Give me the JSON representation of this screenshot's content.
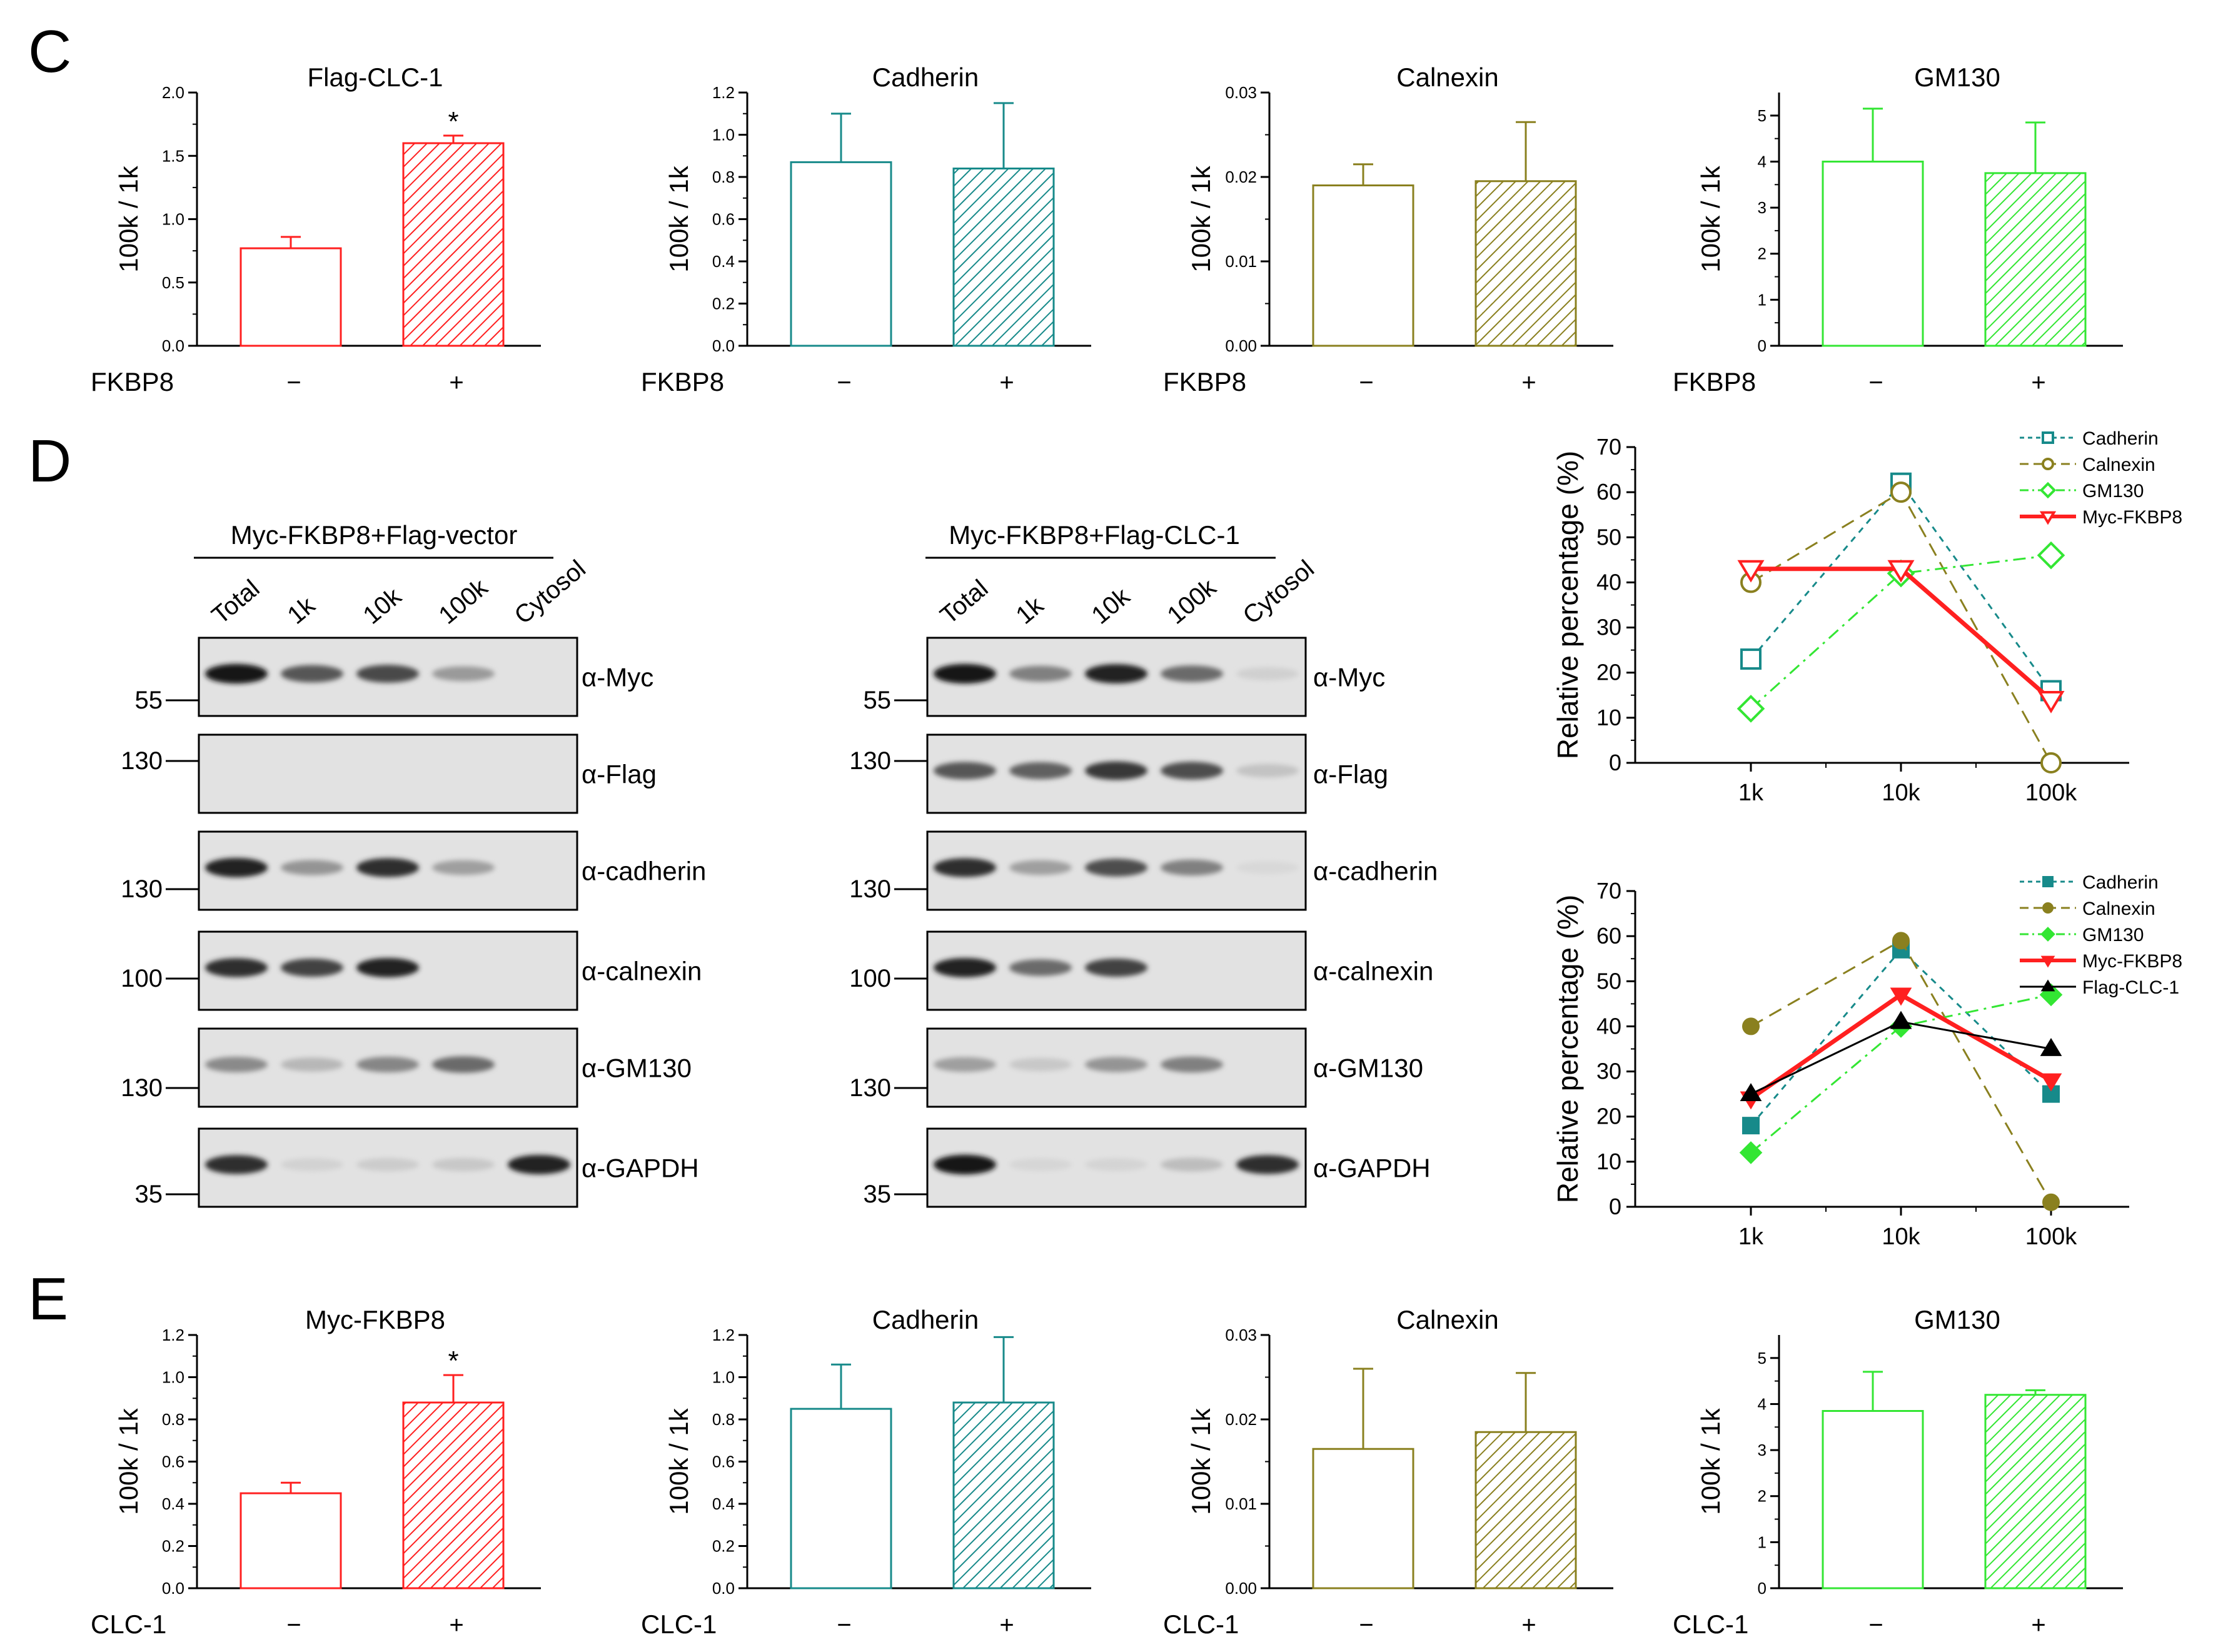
{
  "panels": {
    "C": "C",
    "D": "D",
    "E": "E"
  },
  "colors": {
    "flag_clc1": "#ff2020",
    "myc_fkbp8": "#ff2020",
    "cadherin": "#178a8a",
    "calnexin": "#8a801f",
    "gm130": "#33e633",
    "flag_line": "#000000"
  },
  "signs": {
    "minus": "−",
    "plus": "+"
  },
  "chart_data": [
    {
      "id": "C1",
      "type": "bar",
      "title": "Flag-CLC-1",
      "ylabel": "100k / 1k",
      "xlabel": "FKBP8",
      "categories": [
        "−",
        "+"
      ],
      "values": [
        0.77,
        1.6
      ],
      "errors": [
        0.09,
        0.06
      ],
      "ylim": [
        0,
        2.0
      ],
      "yticks": [
        "0.0",
        "0.5",
        "1.0",
        "1.5",
        "2.0"
      ],
      "significance": [
        "",
        "*"
      ],
      "color_key": "flag_clc1"
    },
    {
      "id": "C2",
      "type": "bar",
      "title": "Cadherin",
      "ylabel": "100k / 1k",
      "xlabel": "FKBP8",
      "categories": [
        "−",
        "+"
      ],
      "values": [
        0.87,
        0.84
      ],
      "errors": [
        0.23,
        0.31
      ],
      "ylim": [
        0,
        1.2
      ],
      "yticks": [
        "0.0",
        "0.2",
        "0.4",
        "0.6",
        "0.8",
        "1.0",
        "1.2"
      ],
      "significance": [
        "",
        ""
      ],
      "color_key": "cadherin"
    },
    {
      "id": "C3",
      "type": "bar",
      "title": "Calnexin",
      "ylabel": "100k / 1k",
      "xlabel": "FKBP8",
      "categories": [
        "−",
        "+"
      ],
      "values": [
        0.019,
        0.0195
      ],
      "errors": [
        0.0025,
        0.007
      ],
      "ylim": [
        0,
        0.03
      ],
      "yticks": [
        "0.00",
        "0.01",
        "0.02",
        "0.03"
      ],
      "significance": [
        "",
        ""
      ],
      "color_key": "calnexin"
    },
    {
      "id": "C4",
      "type": "bar",
      "title": "GM130",
      "ylabel": "100k / 1k",
      "xlabel": "FKBP8",
      "categories": [
        "−",
        "+"
      ],
      "values": [
        4.0,
        3.75
      ],
      "errors": [
        1.15,
        1.1
      ],
      "ylim": [
        0,
        5.5
      ],
      "yticks": [
        "0",
        "1",
        "2",
        "3",
        "4",
        "5"
      ],
      "significance": [
        "",
        ""
      ],
      "color_key": "gm130"
    },
    {
      "id": "E1",
      "type": "bar",
      "title": "Myc-FKBP8",
      "ylabel": "100k / 1k",
      "xlabel": "CLC-1",
      "categories": [
        "−",
        "+"
      ],
      "values": [
        0.45,
        0.88
      ],
      "errors": [
        0.05,
        0.13
      ],
      "ylim": [
        0,
        1.2
      ],
      "yticks": [
        "0.0",
        "0.2",
        "0.4",
        "0.6",
        "0.8",
        "1.0",
        "1.2"
      ],
      "significance": [
        "",
        "*"
      ],
      "color_key": "myc_fkbp8"
    },
    {
      "id": "E2",
      "type": "bar",
      "title": "Cadherin",
      "ylabel": "100k / 1k",
      "xlabel": "CLC-1",
      "categories": [
        "−",
        "+"
      ],
      "values": [
        0.85,
        0.88
      ],
      "errors": [
        0.21,
        0.31
      ],
      "ylim": [
        0,
        1.2
      ],
      "yticks": [
        "0.0",
        "0.2",
        "0.4",
        "0.6",
        "0.8",
        "1.0",
        "1.2"
      ],
      "significance": [
        "",
        ""
      ],
      "color_key": "cadherin"
    },
    {
      "id": "E3",
      "type": "bar",
      "title": "Calnexin",
      "ylabel": "100k / 1k",
      "xlabel": "CLC-1",
      "categories": [
        "−",
        "+"
      ],
      "values": [
        0.0165,
        0.0185
      ],
      "errors": [
        0.0095,
        0.007
      ],
      "ylim": [
        0,
        0.03
      ],
      "yticks": [
        "0.00",
        "0.01",
        "0.02",
        "0.03"
      ],
      "significance": [
        "",
        ""
      ],
      "color_key": "calnexin"
    },
    {
      "id": "E4",
      "type": "bar",
      "title": "GM130",
      "ylabel": "100k / 1k",
      "xlabel": "CLC-1",
      "categories": [
        "−",
        "+"
      ],
      "values": [
        3.85,
        4.2
      ],
      "errors": [
        0.85,
        0.1
      ],
      "ylim": [
        0,
        5.5
      ],
      "yticks": [
        "0",
        "1",
        "2",
        "3",
        "4",
        "5"
      ],
      "significance": [
        "",
        ""
      ],
      "color_key": "gm130"
    },
    {
      "id": "L1",
      "type": "line",
      "ylabel": "Relative percentage (%)",
      "x": [
        "1k",
        "10k",
        "100k"
      ],
      "ylim": [
        0,
        70
      ],
      "yticks": [
        "0",
        "10",
        "20",
        "30",
        "40",
        "50",
        "60",
        "70"
      ],
      "legend_position": "top-right",
      "series": [
        {
          "name": "Cadherin",
          "values": [
            23,
            62,
            16
          ],
          "color_key": "cadherin",
          "dash": "short-dash",
          "marker": "square",
          "filled": false,
          "width": "thin"
        },
        {
          "name": "Calnexin",
          "values": [
            40,
            60,
            0
          ],
          "color_key": "calnexin",
          "dash": "long-dash",
          "marker": "circle",
          "filled": false,
          "width": "thin"
        },
        {
          "name": "GM130",
          "values": [
            12,
            42,
            46
          ],
          "color_key": "gm130",
          "dash": "dash-dot",
          "marker": "diamond",
          "filled": false,
          "width": "thin"
        },
        {
          "name": "Myc-FKBP8",
          "values": [
            43,
            43,
            14
          ],
          "color_key": "myc_fkbp8",
          "dash": "solid",
          "marker": "triangle-down",
          "filled": false,
          "width": "thick"
        }
      ]
    },
    {
      "id": "L2",
      "type": "line",
      "ylabel": "Relative percentage (%)",
      "x": [
        "1k",
        "10k",
        "100k"
      ],
      "ylim": [
        0,
        70
      ],
      "yticks": [
        "0",
        "10",
        "20",
        "30",
        "40",
        "50",
        "60",
        "70"
      ],
      "legend_position": "top-right",
      "series": [
        {
          "name": "Cadherin",
          "values": [
            18,
            57,
            25
          ],
          "color_key": "cadherin",
          "dash": "short-dash",
          "marker": "square",
          "filled": true,
          "width": "thin"
        },
        {
          "name": "Calnexin",
          "values": [
            40,
            59,
            1
          ],
          "color_key": "calnexin",
          "dash": "long-dash",
          "marker": "circle",
          "filled": true,
          "width": "thin"
        },
        {
          "name": "GM130",
          "values": [
            12,
            40,
            47
          ],
          "color_key": "gm130",
          "dash": "dash-dot",
          "marker": "diamond",
          "filled": true,
          "width": "thin"
        },
        {
          "name": "Myc-FKBP8",
          "values": [
            24,
            47,
            28
          ],
          "color_key": "myc_fkbp8",
          "dash": "solid",
          "marker": "triangle-down",
          "filled": true,
          "width": "thick"
        },
        {
          "name": "Flag-CLC-1",
          "values": [
            25,
            41,
            35
          ],
          "color_key": "flag_line",
          "dash": "solid",
          "marker": "triangle-up",
          "filled": true,
          "width": "thin"
        }
      ]
    }
  ],
  "blots": {
    "lanes": [
      "Total",
      "1k",
      "10k",
      "100k",
      "Cytosol"
    ],
    "left": {
      "title": "Myc-FKBP8+Flag-vector",
      "rows": [
        {
          "antibody": "α-Myc",
          "marker": "55",
          "intensity": [
            0.95,
            0.65,
            0.72,
            0.32,
            0.0
          ]
        },
        {
          "antibody": "α-Flag",
          "marker": "130",
          "intensity": [
            0.0,
            0.0,
            0.0,
            0.0,
            0.0
          ]
        },
        {
          "antibody": "α-cadherin",
          "marker": "130",
          "intensity": [
            0.9,
            0.35,
            0.85,
            0.3,
            0.0
          ]
        },
        {
          "antibody": "α-calnexin",
          "marker": "100",
          "intensity": [
            0.85,
            0.75,
            0.9,
            0.0,
            0.0
          ]
        },
        {
          "antibody": "α-GM130",
          "marker": "130",
          "intensity": [
            0.4,
            0.18,
            0.42,
            0.55,
            0.0
          ]
        },
        {
          "antibody": "α-GAPDH",
          "marker": "35",
          "intensity": [
            0.85,
            0.05,
            0.08,
            0.1,
            0.9
          ]
        }
      ]
    },
    "right": {
      "title": "Myc-FKBP8+Flag-CLC-1",
      "rows": [
        {
          "antibody": "α-Myc",
          "marker": "55",
          "intensity": [
            0.95,
            0.45,
            0.9,
            0.55,
            0.06
          ]
        },
        {
          "antibody": "α-Flag",
          "marker": "130",
          "intensity": [
            0.65,
            0.6,
            0.8,
            0.7,
            0.12
          ]
        },
        {
          "antibody": "α-cadherin",
          "marker": "130",
          "intensity": [
            0.85,
            0.3,
            0.7,
            0.45,
            0.02
          ]
        },
        {
          "antibody": "α-calnexin",
          "marker": "100",
          "intensity": [
            0.9,
            0.55,
            0.75,
            0.0,
            0.0
          ]
        },
        {
          "antibody": "α-GM130",
          "marker": "130",
          "intensity": [
            0.3,
            0.1,
            0.35,
            0.45,
            0.0
          ]
        },
        {
          "antibody": "α-GAPDH",
          "marker": "35",
          "intensity": [
            0.95,
            0.03,
            0.04,
            0.15,
            0.85
          ]
        }
      ]
    }
  }
}
